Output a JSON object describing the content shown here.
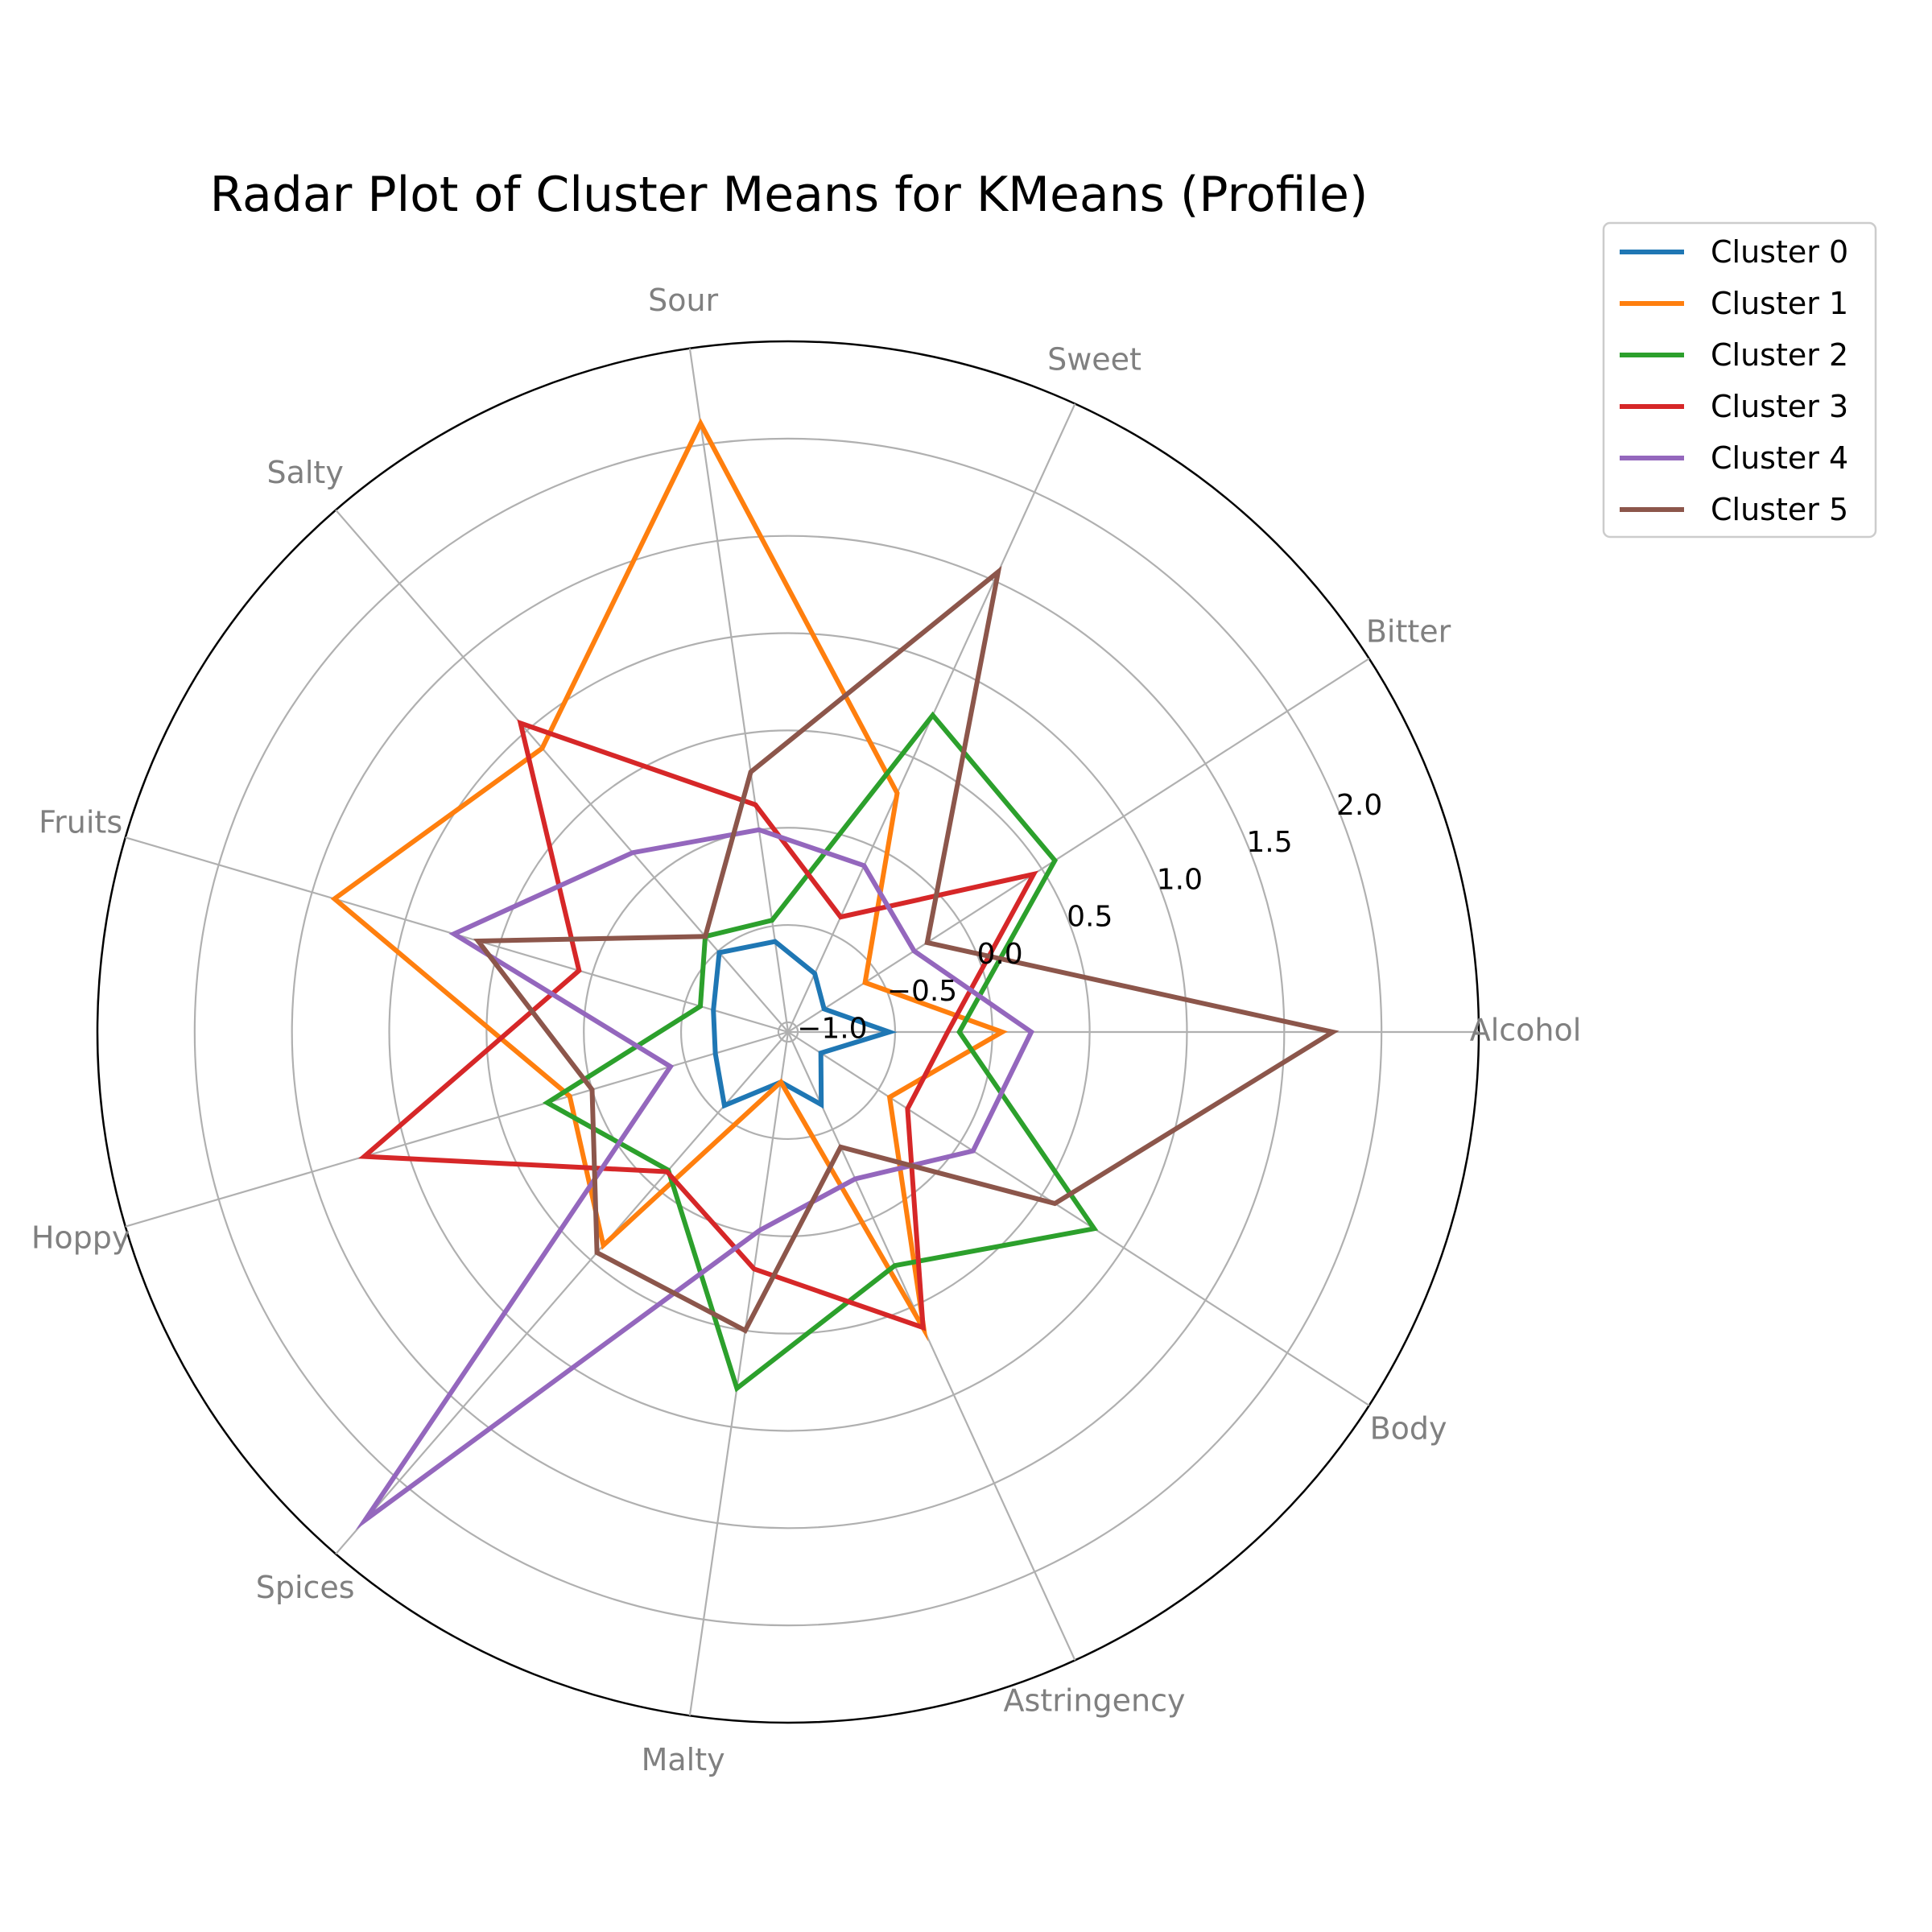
{
  "chart_data": {
    "type": "radar",
    "title": "Radar Plot of Cluster Means for KMeans (Profile)",
    "axes": [
      "Alcohol",
      "Bitter",
      "Sweet",
      "Sour",
      "Salty",
      "Fruits",
      "Hoppy",
      "Spices",
      "Malty",
      "Astringency",
      "Body"
    ],
    "r_ticks": [
      "−1.0",
      "−0.5",
      "0.0",
      "0.5",
      "1.0",
      "1.5",
      "2.0"
    ],
    "r_tick_values": [
      -1.0,
      -0.5,
      0.0,
      0.5,
      1.0,
      1.5,
      2.0
    ],
    "rlim": [
      -1.05,
      2.5
    ],
    "legend_position": "upper-right-outside",
    "series": [
      {
        "name": "Cluster 0",
        "color": "#1f77b4",
        "values": [
          -0.53,
          -0.83,
          -0.72,
          -0.58,
          -0.51,
          -0.65,
          -0.66,
          -0.55,
          -0.79,
          -0.64,
          -0.85
        ]
      },
      {
        "name": "Cluster 1",
        "color": "#ff7f0e",
        "values": [
          0.05,
          -0.58,
          0.3,
          2.11,
          0.88,
          1.38,
          0.12,
          0.4,
          -0.79,
          0.63,
          -0.43
        ]
      },
      {
        "name": "Cluster 2",
        "color": "#2ca02c",
        "values": [
          -0.17,
          0.58,
          0.74,
          -0.47,
          -0.4,
          -0.58,
          0.24,
          -0.11,
          0.8,
          0.27,
          0.82
        ]
      },
      {
        "name": "Cluster 3",
        "color": "#d62728",
        "values": [
          -0.23,
          0.45,
          -0.4,
          0.13,
          1.05,
          0.07,
          1.22,
          -0.1,
          0.18,
          0.62,
          -0.32
        ]
      },
      {
        "name": "Cluster 4",
        "color": "#9467bd",
        "values": [
          0.2,
          -0.28,
          -0.11,
          0.0,
          0.17,
          0.74,
          -0.42,
          2.27,
          -0.02,
          -0.22,
          0.08
        ]
      },
      {
        "name": "Cluster 5",
        "color": "#8c564b",
        "values": [
          1.75,
          -0.2,
          1.55,
          0.3,
          -0.4,
          0.61,
          0.0,
          0.45,
          0.5,
          -0.4,
          0.58
        ]
      }
    ]
  }
}
